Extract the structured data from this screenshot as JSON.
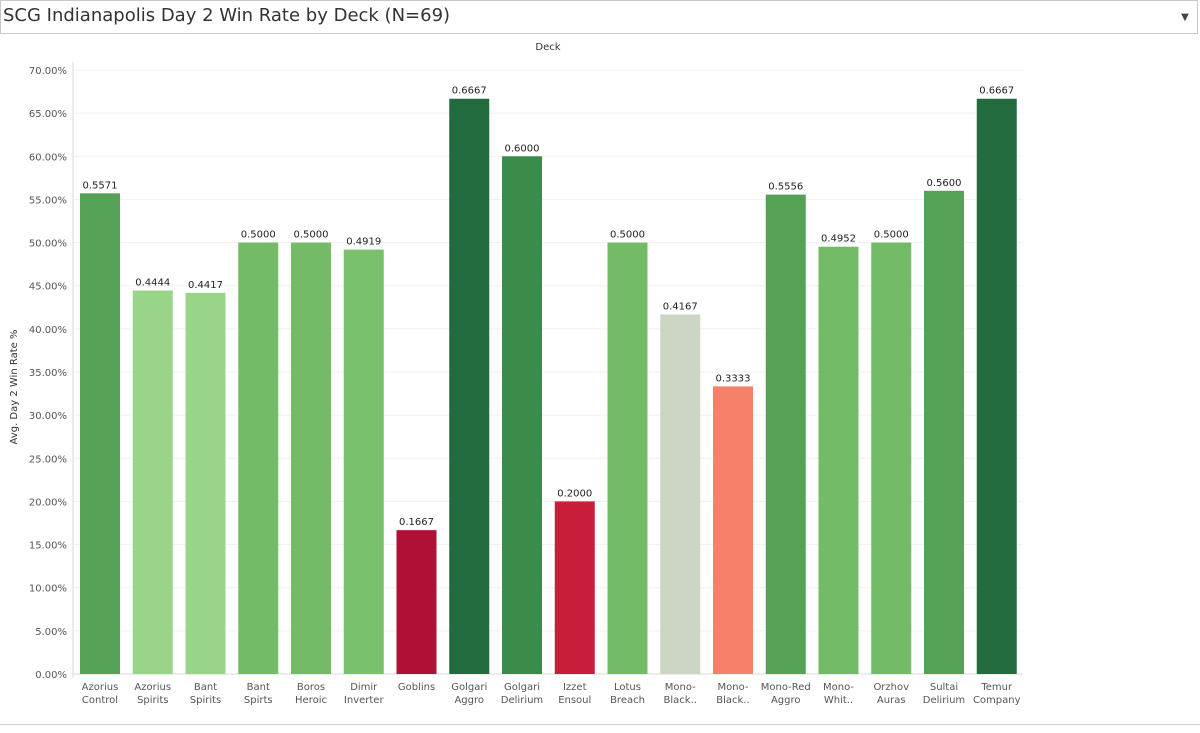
{
  "title": "SCG Indianapolis Day 2 Win Rate by Deck (N=69)",
  "dropdown_icon": "chevron-down-icon",
  "chart_data": {
    "type": "bar",
    "title": "SCG Indianapolis Day 2 Win Rate by Deck (N=69)",
    "xlabel": "Deck",
    "ylabel": "Avg. Day 2 Win Rate %",
    "ylim": [
      0,
      0.7
    ],
    "ytick_values": [
      0,
      0.05,
      0.1,
      0.15,
      0.2,
      0.25,
      0.3,
      0.35,
      0.4,
      0.45,
      0.5,
      0.55,
      0.6,
      0.65,
      0.7
    ],
    "yticks": [
      "0.00%",
      "5.00%",
      "10.00%",
      "15.00%",
      "20.00%",
      "25.00%",
      "30.00%",
      "35.00%",
      "40.00%",
      "45.00%",
      "50.00%",
      "55.00%",
      "60.00%",
      "65.00%",
      "70.00%"
    ],
    "grid": true,
    "categories": [
      [
        "Azorius",
        "Control"
      ],
      [
        "Azorius",
        "Spirits"
      ],
      [
        "Bant",
        "Spirits"
      ],
      [
        "Bant",
        "Spirts"
      ],
      [
        "Boros",
        "Heroic"
      ],
      [
        "Dimir",
        "Inverter"
      ],
      [
        "Goblins"
      ],
      [
        "Golgari",
        "Aggro"
      ],
      [
        "Golgari",
        "Delirium"
      ],
      [
        "Izzet",
        "Ensoul"
      ],
      [
        "Lotus",
        "Breach"
      ],
      [
        "Mono-",
        "Black.."
      ],
      [
        "Mono-",
        "Black.."
      ],
      [
        "Mono-Red",
        "Aggro"
      ],
      [
        "Mono-",
        "Whit.."
      ],
      [
        "Orzhov",
        "Auras"
      ],
      [
        "Sultai",
        "Delirium"
      ],
      [
        "Temur",
        "Company"
      ]
    ],
    "values": [
      0.5571,
      0.4444,
      0.4417,
      0.5,
      0.5,
      0.4919,
      0.1667,
      0.6667,
      0.6,
      0.2,
      0.5,
      0.4167,
      0.3333,
      0.5556,
      0.4952,
      0.5,
      0.56,
      0.6667
    ],
    "labels": [
      "0.5571",
      "0.4444",
      "0.4417",
      "0.5000",
      "0.5000",
      "0.4919",
      "0.1667",
      "0.6667",
      "0.6000",
      "0.2000",
      "0.5000",
      "0.4167",
      "0.3333",
      "0.5556",
      "0.4952",
      "0.5000",
      "0.5600",
      "0.6667"
    ],
    "colors": [
      "#55a257",
      "#98d589",
      "#98d589",
      "#74bb67",
      "#74bb67",
      "#79c16c",
      "#ae1136",
      "#226b3e",
      "#3b8c4a",
      "#c81e3c",
      "#74bb67",
      "#ccd6c4",
      "#f6816a",
      "#55a257",
      "#74bb67",
      "#74bb67",
      "#55a257",
      "#226b3e"
    ]
  }
}
